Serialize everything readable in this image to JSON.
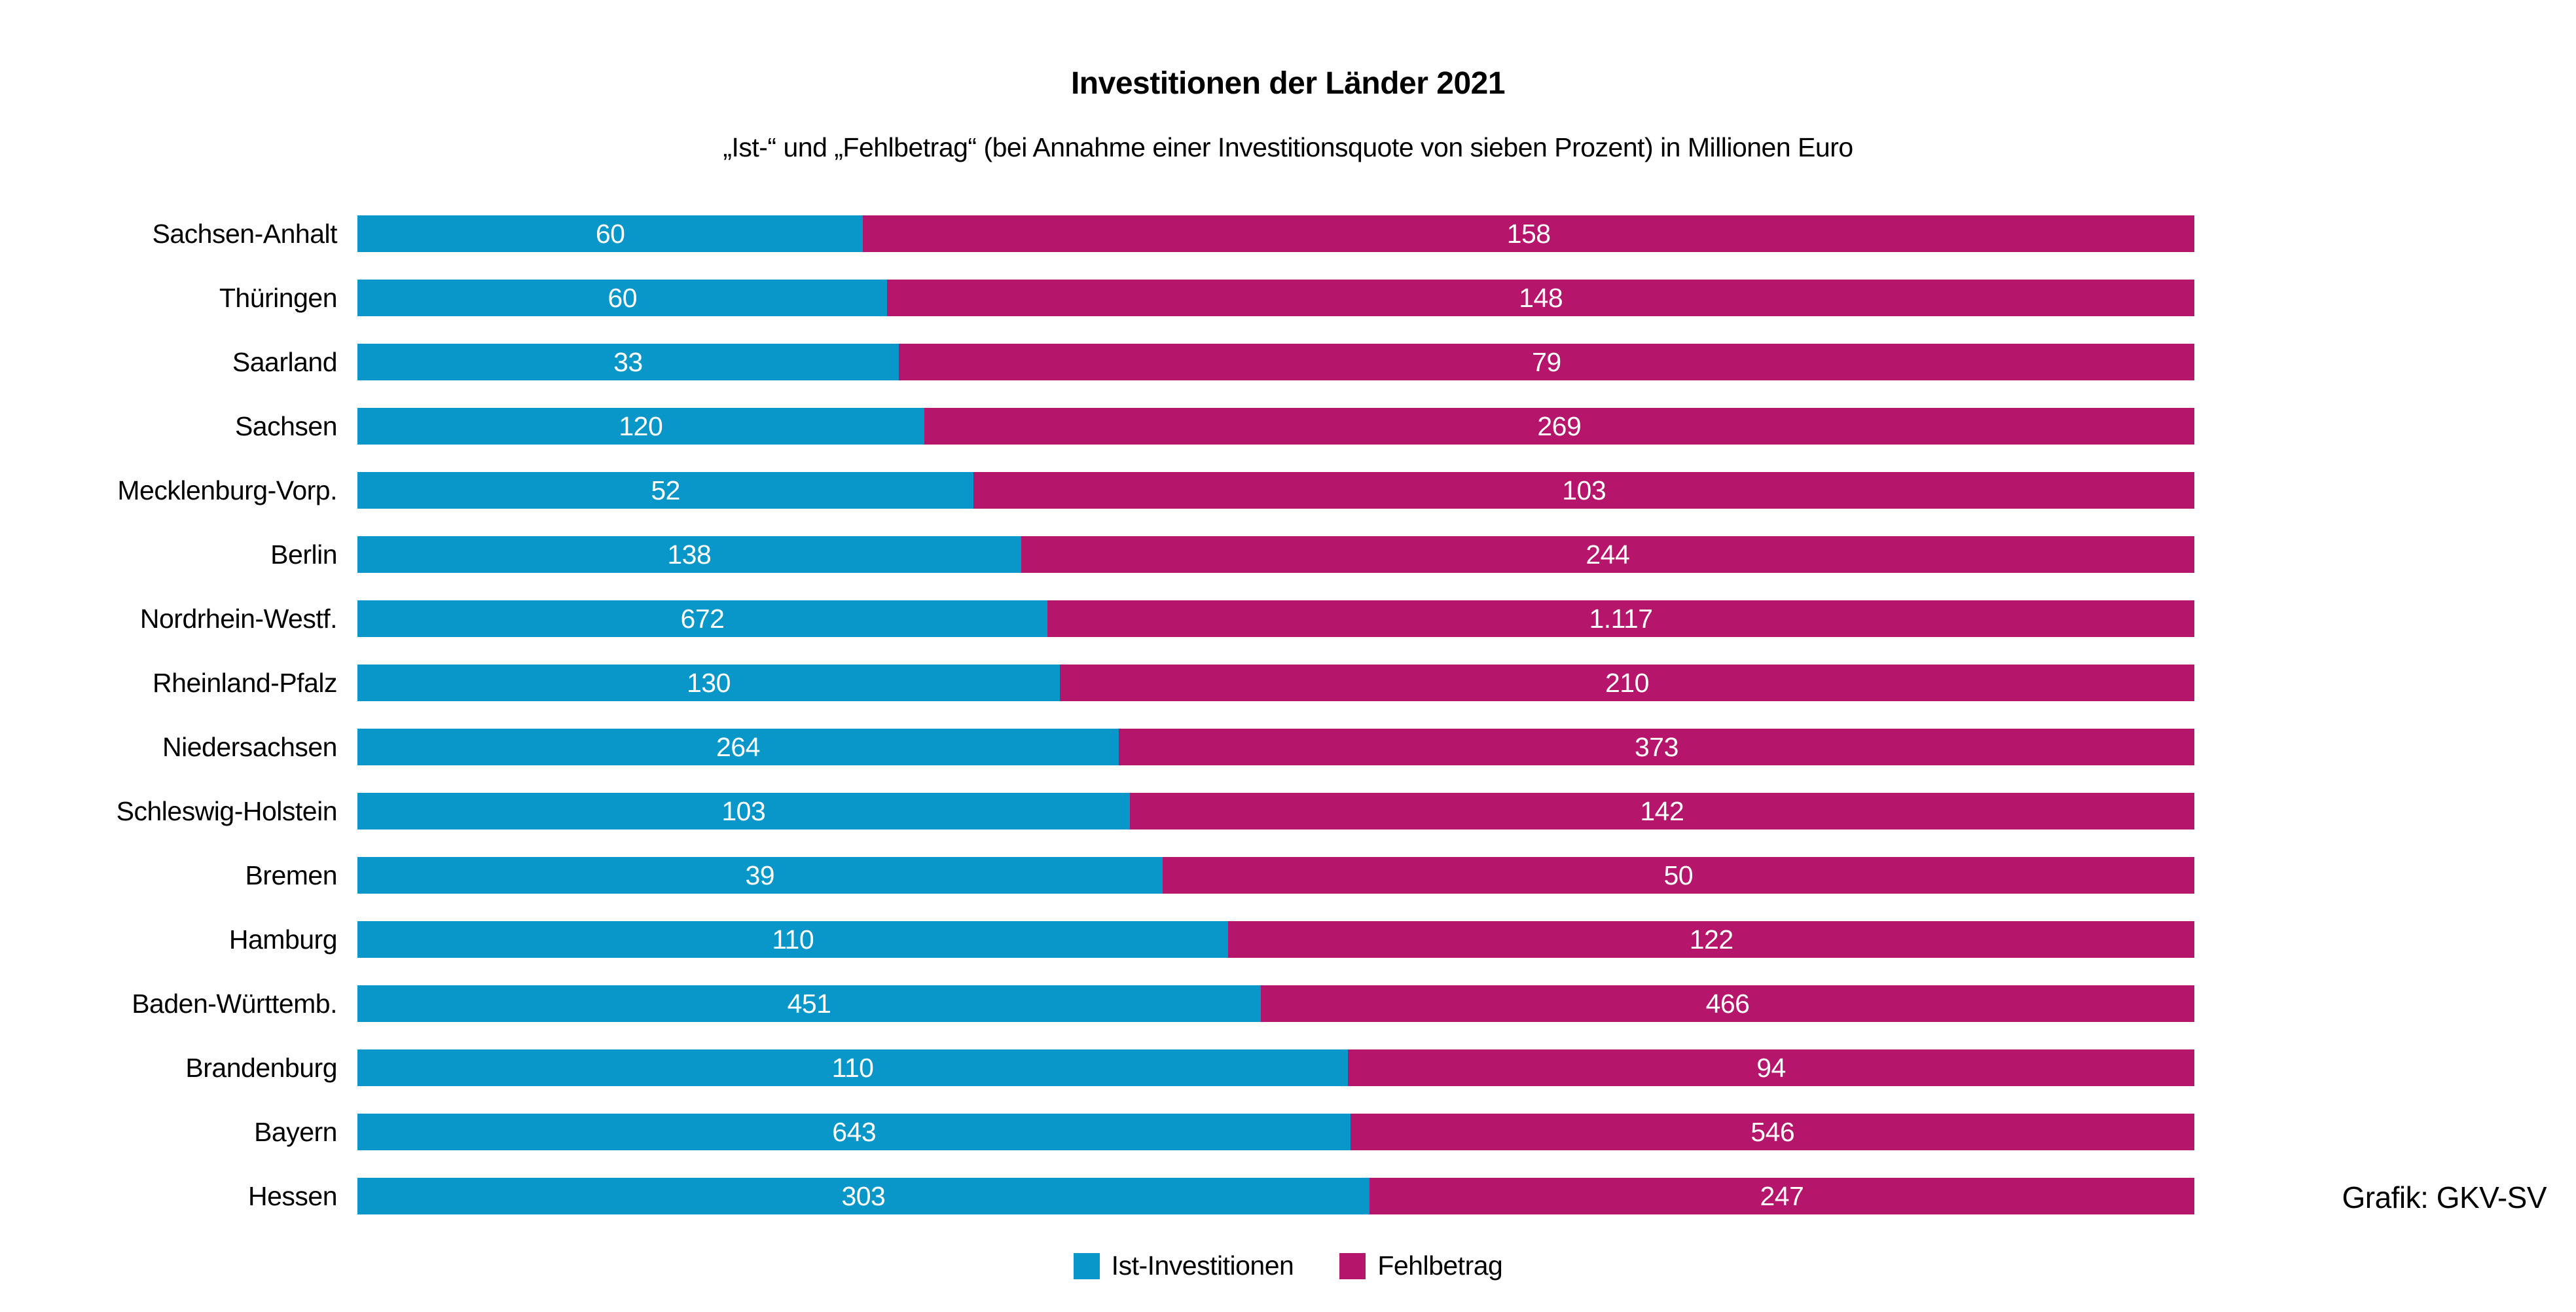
{
  "title": "Investitionen der Länder 2021",
  "subtitle": "„Ist-“ und „Fehlbetrag“ (bei Annahme einer Investitionsquote von sieben Prozent) in Millionen Euro",
  "credit": "Grafik: GKV-SV",
  "colors": {
    "ist": "#0996c9",
    "fehlbetrag": "#b5156b",
    "value_text": "#ffffff",
    "text": "#000000",
    "background": "#ffffff"
  },
  "legend": [
    {
      "label": "Ist-Investitionen",
      "color": "#0996c9"
    },
    {
      "label": "Fehlbetrag",
      "color": "#b5156b"
    }
  ],
  "chart_data": {
    "type": "bar",
    "orientation": "horizontal",
    "stacked": true,
    "normalized_to_full_width": true,
    "title": "Investitionen der Länder 2021",
    "subtitle": "„Ist-“ und „Fehlbetrag“ (bei Annahme einer Investitionsquote von sieben Prozent) in Millionen Euro",
    "unit": "Millionen Euro",
    "grid": false,
    "legend_position": "bottom-center",
    "categories": [
      "Sachsen-Anhalt",
      "Thüringen",
      "Saarland",
      "Sachsen",
      "Mecklenburg-Vorp.",
      "Berlin",
      "Nordrhein-Westf.",
      "Rheinland-Pfalz",
      "Niedersachsen",
      "Schleswig-Holstein",
      "Bremen",
      "Hamburg",
      "Baden-Württemb.",
      "Brandenburg",
      "Bayern",
      "Hessen"
    ],
    "series": [
      {
        "name": "Ist-Investitionen",
        "color": "#0996c9",
        "values": [
          60,
          60,
          33,
          120,
          52,
          138,
          672,
          130,
          264,
          103,
          39,
          110,
          451,
          110,
          643,
          303
        ],
        "display": [
          "60",
          "60",
          "33",
          "120",
          "52",
          "138",
          "672",
          "130",
          "264",
          "103",
          "39",
          "110",
          "451",
          "110",
          "643",
          "303"
        ]
      },
      {
        "name": "Fehlbetrag",
        "color": "#b5156b",
        "values": [
          158,
          148,
          79,
          269,
          103,
          244,
          1117,
          210,
          373,
          142,
          50,
          122,
          466,
          94,
          546,
          247
        ],
        "display": [
          "158",
          "148",
          "79",
          "269",
          "103",
          "244",
          "1.117",
          "210",
          "373",
          "142",
          "50",
          "122",
          "466",
          "94",
          "546",
          "247"
        ]
      }
    ]
  }
}
